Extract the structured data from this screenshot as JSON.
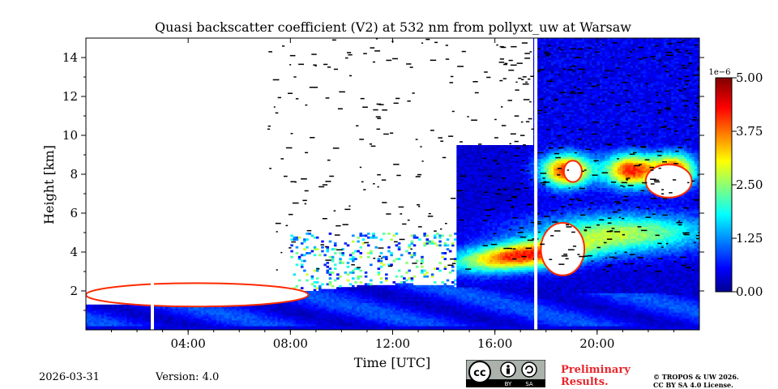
{
  "title": "Quasi backscatter coefficient (V2) at 532 nm from pollyxt_uw at Warsaw",
  "date": "2026-03-31",
  "version": "Version: 4.0",
  "preliminary": [
    "Preliminary",
    "Results."
  ],
  "copyright": [
    "© TROPOS & UW 2026.",
    "CC BY SA 4.0 License."
  ],
  "license_badge": {
    "icon": "cc-by-sa-icon",
    "cc": "cc",
    "by": "BY",
    "sa": "SA"
  },
  "chart_data": {
    "type": "heatmap",
    "title": "Quasi backscatter coefficient (V2) at 532 nm from pollyxt_uw at Warsaw",
    "xlabel": "Time [UTC]",
    "ylabel": "Height [km]",
    "xlim": [
      0,
      24
    ],
    "ylim": [
      0,
      15
    ],
    "xticks": [
      4,
      8,
      12,
      16,
      20
    ],
    "xtick_labels": [
      "04:00",
      "08:00",
      "12:00",
      "16:00",
      "20:00"
    ],
    "yticks": [
      2,
      4,
      6,
      8,
      10,
      12,
      14
    ],
    "ytick_labels": [
      "2",
      "4",
      "6",
      "8",
      "10",
      "12",
      "14"
    ],
    "colorbar": {
      "min": 0.0,
      "max": 5.0,
      "ticks": [
        0.0,
        1.25,
        2.5,
        3.75,
        5.0
      ],
      "tick_labels": [
        "0.00",
        "1.25",
        "2.50",
        "3.75",
        "5.00"
      ],
      "scale_label": "1e−6",
      "colormap": "jet"
    },
    "data_gaps_utc": [
      2.6,
      17.6
    ],
    "features": [
      {
        "name": "boundary layer aerosol",
        "t_start": 0.0,
        "t_end": 24.0,
        "top_km": [
          1.3,
          2.6
        ],
        "value": 0.8
      },
      {
        "name": "saturated low cloud",
        "t_start": 0.0,
        "t_end": 8.7,
        "base_km": 1.2,
        "top_km": 2.4
      },
      {
        "name": "upper aerosol/cloud layers",
        "t_start": 14.5,
        "t_end": 24.0,
        "bottom_km": 3.0,
        "top_km": 9.5,
        "value": 3.5
      },
      {
        "name": "saturated cloud",
        "t_start": 17.8,
        "t_end": 19.5,
        "base_km": 2.8,
        "top_km": 5.5
      },
      {
        "name": "saturated cloud",
        "t_start": 21.9,
        "t_end": 23.7,
        "base_km": 6.8,
        "top_km": 8.5
      },
      {
        "name": "noisy background",
        "t_start": 17.5,
        "t_end": 24.0,
        "bottom_km": 6.0,
        "top_km": 15.0,
        "value": 0.3
      }
    ]
  }
}
